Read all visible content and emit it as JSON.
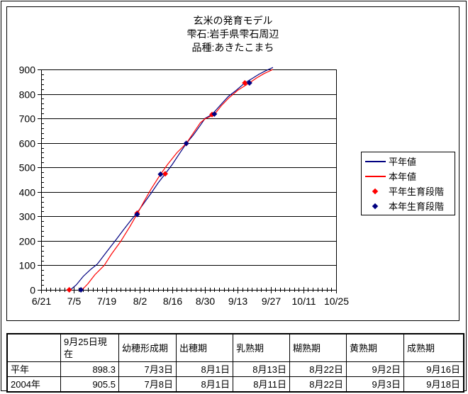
{
  "header": {
    "title": "玄米の発育モデル",
    "subtitle1": "雫石:岩手県雫石周辺",
    "subtitle2": "品種:あきたこまち"
  },
  "legend": {
    "items": [
      {
        "label": "平年値",
        "type": "line",
        "color": "#000080"
      },
      {
        "label": "本年値",
        "type": "line",
        "color": "#ff0000"
      },
      {
        "label": "平年生育段階",
        "type": "diamond",
        "color": "#ff0000"
      },
      {
        "label": "本年生育段階",
        "type": "diamond",
        "color": "#000080"
      }
    ]
  },
  "chart_data": {
    "type": "line",
    "title": "玄米の発育モデル",
    "subtitle": [
      "雫石:岩手県雫石周辺",
      "品種:あきたこまち"
    ],
    "x_axis": {
      "tick_labels": [
        "6/21",
        "7/5",
        "7/19",
        "8/2",
        "8/16",
        "8/30",
        "9/13",
        "9/27",
        "10/11",
        "10/25"
      ],
      "major_tick_days": 14,
      "minor_tick_days": 2,
      "total_days": 126,
      "unit": "days since 6/21"
    },
    "y_axis": {
      "min": 0,
      "max": 900,
      "major": 100,
      "minor": 20
    },
    "grid": "horizontal-only",
    "legend_position": "right",
    "series": [
      {
        "name": "平年値",
        "color": "#000080",
        "style": "line",
        "points": [
          [
            12.5,
            0
          ],
          [
            15,
            20
          ],
          [
            18,
            55
          ],
          [
            21,
            82
          ],
          [
            24,
            105
          ],
          [
            28,
            155
          ],
          [
            32,
            205
          ],
          [
            35,
            243
          ],
          [
            38,
            280
          ],
          [
            41,
            315
          ],
          [
            44,
            355
          ],
          [
            47,
            395
          ],
          [
            50,
            437
          ],
          [
            53,
            474
          ],
          [
            56,
            512
          ],
          [
            59,
            555
          ],
          [
            62,
            598
          ],
          [
            65,
            632
          ],
          [
            68,
            672
          ],
          [
            70,
            700
          ],
          [
            73,
            716
          ],
          [
            76,
            748
          ],
          [
            80,
            790
          ],
          [
            83,
            812
          ],
          [
            87,
            845
          ],
          [
            90,
            862
          ],
          [
            93,
            880
          ],
          [
            96,
            895
          ],
          [
            99,
            908
          ]
        ]
      },
      {
        "name": "本年値",
        "color": "#ff0000",
        "style": "line",
        "points": [
          [
            17.5,
            0
          ],
          [
            20,
            25
          ],
          [
            23,
            62
          ],
          [
            27,
            100
          ],
          [
            30,
            145
          ],
          [
            34,
            198
          ],
          [
            38,
            260
          ],
          [
            41,
            310
          ],
          [
            44,
            362
          ],
          [
            47,
            412
          ],
          [
            51,
            472
          ],
          [
            54,
            512
          ],
          [
            58,
            560
          ],
          [
            62,
            598
          ],
          [
            65,
            640
          ],
          [
            68,
            682
          ],
          [
            70,
            698
          ],
          [
            74,
            716
          ],
          [
            77,
            752
          ],
          [
            80,
            782
          ],
          [
            84,
            815
          ],
          [
            89,
            845
          ],
          [
            92,
            865
          ],
          [
            95,
            882
          ],
          [
            99,
            900
          ]
        ]
      },
      {
        "name": "平年生育段階",
        "color": "#ff0000",
        "style": "diamond",
        "points": [
          [
            12,
            0
          ],
          [
            41,
            313
          ],
          [
            53,
            474
          ],
          [
            62,
            598
          ],
          [
            73,
            716
          ],
          [
            87,
            845
          ]
        ]
      },
      {
        "name": "本年生育段階",
        "color": "#000080",
        "style": "diamond",
        "points": [
          [
            17,
            0
          ],
          [
            41,
            308
          ],
          [
            51,
            472
          ],
          [
            62,
            598
          ],
          [
            74,
            718
          ],
          [
            89,
            845
          ]
        ]
      }
    ]
  },
  "table": {
    "headers": [
      "",
      "9月25日現在",
      "幼穂形成期",
      "出穂期",
      "乳熟期",
      "糊熟期",
      "黄熟期",
      "成熟期"
    ],
    "rows": [
      {
        "label": "平年",
        "values": [
          "898.3",
          "7月3日",
          "8月1日",
          "8月13日",
          "8月22日",
          "9月2日",
          "9月16日"
        ]
      },
      {
        "label": "2004年",
        "values": [
          "905.5",
          "7月8日",
          "8月1日",
          "8月11日",
          "8月22日",
          "9月3日",
          "9月18日"
        ]
      }
    ]
  }
}
